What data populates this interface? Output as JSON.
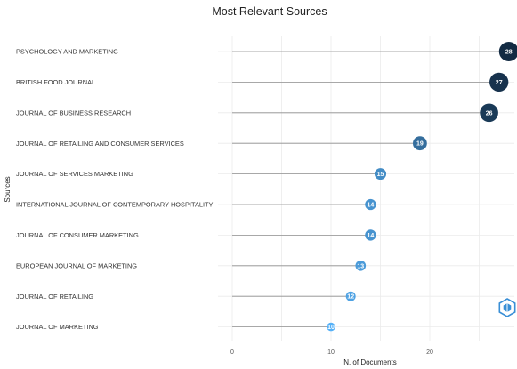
{
  "chart_data": {
    "type": "scatter",
    "title": "Most Relevant Sources",
    "xlabel": "N. of Documents",
    "ylabel": "Sources",
    "xlim": [
      0,
      28
    ],
    "xticks": [
      0,
      10,
      20
    ],
    "grid": true,
    "legend": "none",
    "categories": [
      "PSYCHOLOGY AND MARKETING",
      "BRITISH FOOD JOURNAL",
      "JOURNAL OF BUSINESS RESEARCH",
      "JOURNAL OF RETAILING AND CONSUMER SERVICES",
      "JOURNAL OF SERVICES MARKETING",
      "INTERNATIONAL JOURNAL OF CONTEMPORARY HOSPITALITY",
      "JOURNAL OF CONSUMER MARKETING",
      "EUROPEAN JOURNAL OF MARKETING",
      "JOURNAL OF RETAILING",
      "JOURNAL OF MARKETING"
    ],
    "values": [
      28,
      27,
      26,
      19,
      15,
      14,
      14,
      13,
      12,
      10
    ],
    "colors": {
      "high": "#132b43",
      "low": "#56b1f7",
      "stem": "#8f8f8f",
      "grid": "#ebebeb"
    }
  },
  "watermark_icon": "bibliometrix-logo-icon"
}
